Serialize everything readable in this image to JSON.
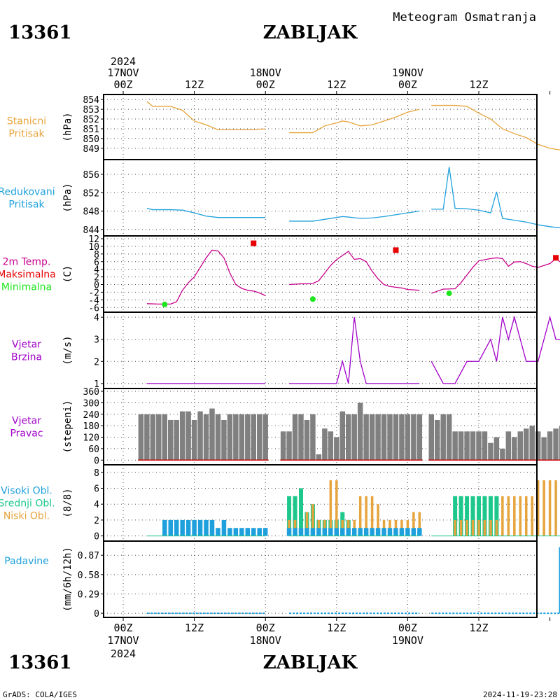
{
  "header": {
    "station_id": "13361",
    "station_name": "ZABLJAK",
    "product": "Meteogram Osmatranja",
    "footer_left": "GrADS: COLA/IGES",
    "footer_right": "2024-11-19-23:28"
  },
  "time_axis": {
    "top_year": "2024",
    "bottom_year": "2024",
    "date_labels": [
      "17NOV",
      "18NOV",
      "19NOV"
    ],
    "hour_labels": [
      "00Z",
      "12Z",
      "00Z",
      "12Z",
      "00Z",
      "12Z"
    ]
  },
  "colors": {
    "pressure": "#e6a43c",
    "reduced_pressure": "#1ea0dc",
    "temp_line": "#c8008c",
    "tmax": "#e60000",
    "tmin": "#1ee61e",
    "wind": "#a000c8",
    "wind_dir_bar": "#808080",
    "wind_dir_base": "#c80000",
    "cloud_high": "#1ea0dc",
    "cloud_mid": "#1ec88c",
    "cloud_low": "#e6a43c",
    "precip": "#1ea0dc"
  },
  "chart_data": [
    {
      "type": "line",
      "labels": [
        "Stanicni",
        "Pritisak"
      ],
      "unit": "(hPa)",
      "ylim": [
        848.2,
        854.3
      ],
      "yticks": [
        849,
        850,
        851,
        852,
        853,
        854
      ],
      "series": [
        {
          "x": [
            4,
            5,
            8,
            10,
            12,
            14,
            16,
            18,
            20,
            22,
            24
          ],
          "y": [
            853.8,
            853.3,
            853.3,
            852.9,
            851.8,
            851.4,
            850.9,
            850.9,
            850.9,
            850.9,
            851.0
          ]
        },
        {
          "x": [
            28,
            32,
            34,
            36,
            37,
            38,
            40,
            42,
            44,
            46,
            48,
            50
          ],
          "y": [
            850.6,
            850.6,
            851.3,
            851.6,
            851.8,
            851.7,
            851.3,
            851.4,
            851.8,
            852.2,
            852.7,
            853.0
          ]
        },
        {
          "x": [
            52,
            56,
            58,
            60,
            62,
            64,
            66,
            68,
            70,
            72,
            74,
            76
          ],
          "y": [
            853.4,
            853.4,
            853.3,
            852.6,
            852.0,
            851.0,
            850.5,
            850.1,
            849.4,
            849.0,
            848.8,
            848.6
          ]
        }
      ]
    },
    {
      "type": "line",
      "labels": [
        "Redukovani",
        "Pritisak"
      ],
      "unit": "(hPa)",
      "ylim": [
        843.2,
        858.6
      ],
      "yticks": [
        844,
        848,
        852,
        856
      ],
      "series": [
        {
          "x": [
            4,
            5,
            8,
            10,
            12,
            14,
            16,
            18,
            20,
            22,
            24
          ],
          "y": [
            848.6,
            848.3,
            848.3,
            848.2,
            847.6,
            846.9,
            846.6,
            846.6,
            846.6,
            846.6,
            846.6
          ]
        },
        {
          "x": [
            28,
            32,
            34,
            36,
            37,
            38,
            40,
            42,
            44,
            46,
            48,
            50
          ],
          "y": [
            845.8,
            845.8,
            846.2,
            846.6,
            846.8,
            846.7,
            846.4,
            846.5,
            846.8,
            847.2,
            847.6,
            848.0
          ]
        },
        {
          "x": [
            52,
            54,
            55,
            56,
            58,
            60,
            62,
            63,
            64,
            66,
            68,
            70,
            72,
            74,
            76
          ],
          "y": [
            848.4,
            848.4,
            857.6,
            848.6,
            848.5,
            848.2,
            847.6,
            852.2,
            846.4,
            846.0,
            845.6,
            845.0,
            844.6,
            844.3,
            844.1
          ]
        }
      ]
    },
    {
      "type": "line",
      "labels": [
        "2m Temp.",
        "Maksimalna",
        "Minimalna"
      ],
      "unit": "(C)",
      "ylim": [
        -6.5,
        12
      ],
      "yticks": [
        -6,
        -4,
        -2,
        0,
        2,
        4,
        6,
        8,
        10,
        12
      ],
      "series": [
        {
          "x": [
            4,
            6,
            8,
            9,
            10,
            11,
            12,
            13,
            14,
            15,
            16,
            17,
            18,
            19,
            20,
            21,
            22,
            23,
            24
          ],
          "y": [
            -5.0,
            -5.1,
            -5.1,
            -4.5,
            -1.5,
            0.5,
            2.0,
            4.5,
            7.0,
            9.0,
            8.8,
            7.0,
            3.0,
            0.0,
            -1.0,
            -1.5,
            -1.7,
            -2.2,
            -2.9
          ]
        },
        {
          "x": [
            28,
            30,
            31,
            32,
            33,
            34,
            35,
            36,
            37,
            38,
            39,
            40,
            41,
            42,
            43,
            44,
            45,
            46,
            47,
            48,
            49,
            50
          ],
          "y": [
            0.0,
            0.2,
            0.2,
            0.3,
            1.0,
            3.0,
            5.0,
            6.5,
            7.6,
            8.7,
            6.6,
            6.8,
            6.0,
            3.5,
            1.5,
            0.0,
            -0.5,
            -0.7,
            -0.9,
            -1.3,
            -1.4,
            -1.5
          ]
        },
        {
          "x": [
            52,
            54,
            56,
            57,
            58,
            59,
            60,
            61,
            62,
            63,
            64,
            65,
            66,
            67,
            68,
            69,
            70,
            71,
            72,
            73,
            74,
            75,
            76
          ],
          "y": [
            -2.3,
            -1.2,
            -1.1,
            0.5,
            2.5,
            4.5,
            6.2,
            6.5,
            6.8,
            7.0,
            6.8,
            4.8,
            5.9,
            6.0,
            5.5,
            4.8,
            4.5,
            5.0,
            5.5,
            6.8,
            5.6,
            4.8,
            4.5
          ]
        }
      ],
      "tmax": [
        {
          "x": 22,
          "y": 10.8
        },
        {
          "x": 46,
          "y": 9.0
        },
        {
          "x": 73,
          "y": 7.0
        }
      ],
      "tmin": [
        {
          "x": 7,
          "y": -5.2
        },
        {
          "x": 32,
          "y": -3.8
        },
        {
          "x": 55,
          "y": -2.3
        }
      ]
    },
    {
      "type": "line",
      "labels": [
        "Vjetar",
        "Brzina"
      ],
      "unit": "(m/s)",
      "ylim": [
        0.9,
        4.1
      ],
      "yticks": [
        1,
        2,
        3,
        4
      ],
      "series": [
        {
          "x": [
            4,
            24
          ],
          "y": [
            1,
            1
          ]
        },
        {
          "x": [
            28,
            36,
            37,
            38,
            39,
            40,
            41,
            50
          ],
          "y": [
            1,
            1,
            2,
            1,
            4,
            2,
            1,
            1
          ]
        },
        {
          "x": [
            52,
            54,
            56,
            58,
            60,
            62,
            63,
            64,
            65,
            66,
            67,
            68,
            70,
            72,
            73,
            74
          ],
          "y": [
            2,
            1,
            1,
            2,
            2,
            3,
            2,
            4,
            3,
            4,
            3,
            2,
            2,
            4,
            3,
            3
          ]
        }
      ]
    },
    {
      "type": "bar",
      "labels": [
        "Vjetar",
        "Pravac"
      ],
      "unit": "(stepeni)",
      "ylim": [
        -10,
        360
      ],
      "yticks": [
        0,
        60,
        120,
        180,
        240,
        300,
        360
      ],
      "bars": [
        {
          "x": [
            3,
            4,
            5,
            6,
            7,
            8,
            9,
            10,
            11,
            12,
            13,
            14,
            15,
            16,
            17,
            18,
            19,
            20,
            21,
            22,
            23,
            24
          ],
          "y": [
            240,
            240,
            240,
            240,
            240,
            210,
            210,
            255,
            255,
            210,
            255,
            240,
            270,
            240,
            210,
            240,
            240,
            240,
            240,
            240,
            240,
            240
          ]
        },
        {
          "x": [
            27,
            28,
            29,
            30,
            31,
            32,
            33,
            34,
            35,
            36,
            37,
            38,
            39,
            40,
            41,
            42,
            43,
            44,
            45,
            46,
            47,
            48,
            49,
            50
          ],
          "y": [
            150,
            150,
            240,
            240,
            210,
            240,
            30,
            165,
            150,
            120,
            255,
            240,
            240,
            300,
            240,
            240,
            240,
            240,
            240,
            240,
            240,
            240,
            240,
            240
          ]
        },
        {
          "x": [
            52,
            53,
            54,
            55,
            56,
            57,
            58,
            59,
            60,
            61,
            62,
            63,
            64,
            65,
            66,
            67,
            68,
            69,
            70,
            71,
            72,
            73,
            74,
            75,
            76
          ],
          "y": [
            240,
            210,
            240,
            240,
            150,
            150,
            150,
            150,
            150,
            150,
            90,
            120,
            60,
            150,
            120,
            150,
            165,
            180,
            150,
            120,
            150,
            165,
            180,
            180,
            180
          ]
        }
      ]
    },
    {
      "type": "bar",
      "labels": [
        "Visoki Obl.",
        "Srednji Obl.",
        "Niski Obl."
      ],
      "unit": "(8/8)",
      "ylim": [
        -0.3,
        8.6
      ],
      "yticks": [
        0,
        2,
        4,
        6,
        8
      ],
      "series": [
        {
          "name": "Visoki Obl.",
          "x": [
            7,
            8,
            9,
            10,
            11,
            12,
            13,
            14,
            15,
            16,
            17,
            18,
            19,
            20,
            21,
            22,
            23,
            24,
            28,
            29,
            30,
            31,
            32,
            33,
            34,
            35,
            36,
            37,
            38,
            39,
            40,
            41,
            42,
            43,
            44,
            45,
            46,
            47,
            48,
            49,
            50
          ],
          "y": [
            2,
            2,
            2,
            2,
            2,
            2,
            2,
            2,
            2,
            1,
            2,
            1,
            1,
            1,
            1,
            1,
            1,
            1,
            1,
            1,
            1,
            1,
            1,
            1,
            1,
            1,
            1,
            1,
            1,
            1,
            1,
            1,
            1,
            1,
            1,
            1,
            1,
            1,
            1,
            1,
            1
          ]
        },
        {
          "name": "Srednji Obl.",
          "x": [
            28,
            29,
            30,
            31,
            32,
            33,
            34,
            35,
            36,
            37,
            38,
            56,
            57,
            58,
            59,
            60,
            61,
            62,
            63
          ],
          "y": [
            5,
            5,
            6,
            3,
            4,
            2,
            2,
            2,
            2,
            3,
            2,
            5,
            5,
            5,
            5,
            5,
            5,
            5,
            5
          ]
        },
        {
          "name": "Niski Obl.",
          "x": [
            28,
            29,
            30,
            31,
            32,
            33,
            34,
            35,
            36,
            37,
            38,
            39,
            40,
            41,
            42,
            43,
            44,
            45,
            46,
            47,
            48,
            49,
            50,
            56,
            57,
            58,
            59,
            60,
            61,
            62,
            63,
            64,
            65,
            66,
            67,
            68,
            69,
            70,
            71,
            72,
            73,
            74,
            75,
            76
          ],
          "y": [
            2,
            2,
            1,
            3,
            4,
            2,
            2,
            7,
            7,
            2,
            2,
            2,
            5,
            5,
            5,
            4,
            2,
            2,
            2,
            2,
            2,
            3,
            3,
            2,
            2,
            2,
            2,
            2,
            2,
            2,
            2,
            5,
            5,
            5,
            5,
            5,
            5,
            7,
            7,
            7,
            7,
            7,
            6,
            2
          ]
        }
      ]
    },
    {
      "type": "bar",
      "labels": [
        "Padavine"
      ],
      "unit": "(mm/6h/12h)",
      "ylim": [
        -0.02,
        1.04
      ],
      "yticks": [
        0,
        0.29,
        0.58,
        0.87
      ],
      "ytick_labels": [
        "0",
        "0.29",
        "0.58",
        "0.87"
      ],
      "bars": [
        {
          "x": [
            74
          ],
          "y": [
            0.99
          ]
        }
      ],
      "baseline_segments": [
        [
          4,
          24
        ],
        [
          28,
          50
        ],
        [
          52,
          76
        ]
      ]
    }
  ]
}
